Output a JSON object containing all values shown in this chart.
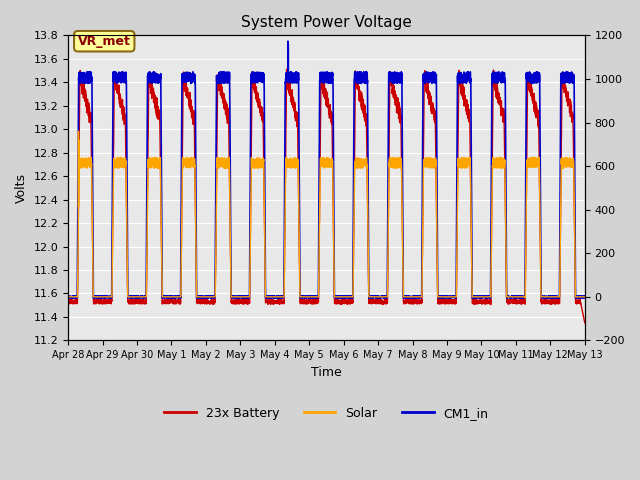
{
  "title": "System Power Voltage",
  "xlabel": "Time",
  "ylabel": "Volts",
  "ylim_left": [
    11.2,
    13.8
  ],
  "ylim_right": [
    -200,
    1200
  ],
  "yticks_left": [
    11.2,
    11.4,
    11.6,
    11.8,
    12.0,
    12.2,
    12.4,
    12.6,
    12.8,
    13.0,
    13.2,
    13.4,
    13.6,
    13.8
  ],
  "yticks_right": [
    -200,
    0,
    200,
    400,
    600,
    800,
    1000,
    1200
  ],
  "xtick_positions": [
    0,
    1,
    2,
    3,
    4,
    5,
    6,
    7,
    8,
    9,
    10,
    11,
    12,
    13,
    14,
    15
  ],
  "xtick_labels": [
    "Apr 28",
    "Apr 29",
    "Apr 30",
    "May 1",
    "May 2",
    "May 3",
    "May 4",
    "May 5",
    "May 6",
    "May 7",
    "May 8",
    "May 9",
    "May 10",
    "May 11",
    "May 12",
    "May 13"
  ],
  "battery_color": "#CC0000",
  "solar_color": "#FFA500",
  "cm1_color": "#0000CC",
  "legend_labels": [
    "23x Battery",
    "Solar",
    "CM1_in"
  ],
  "annotation_text": "VR_met",
  "background_color": "#d3d3d3",
  "plot_bg": "#e8e8e8",
  "num_days": 15,
  "points_per_day": 288
}
